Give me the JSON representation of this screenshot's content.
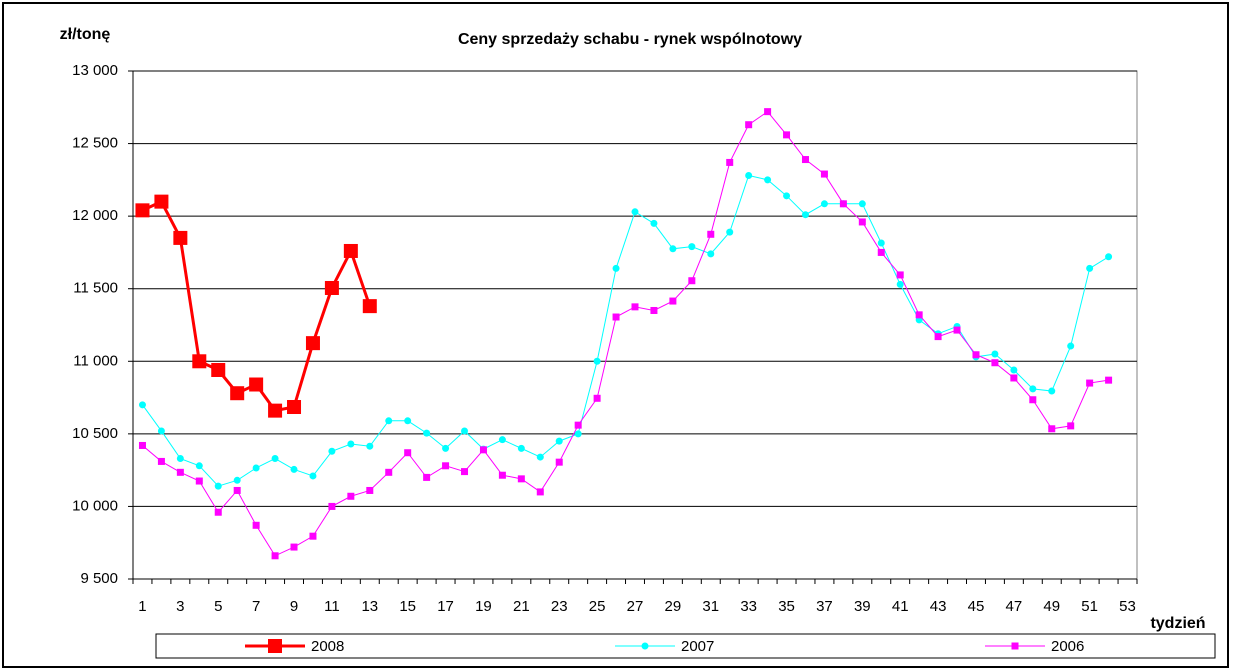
{
  "chart_data": {
    "type": "line",
    "title": "Ceny sprzedaży schabu -  rynek wspólnotowy",
    "y_label": "zł/tonę",
    "x_label": "tydzień",
    "categories": [
      1,
      null,
      3,
      null,
      5,
      null,
      7,
      null,
      9,
      null,
      11,
      null,
      13,
      null,
      15,
      null,
      17,
      null,
      19,
      null,
      21,
      null,
      23,
      null,
      25,
      null,
      27,
      null,
      29,
      null,
      31,
      null,
      33,
      null,
      35,
      null,
      37,
      null,
      39,
      null,
      41,
      null,
      43,
      null,
      45,
      null,
      47,
      null,
      49,
      null,
      51,
      null,
      53
    ],
    "ylim": [
      9500,
      13000
    ],
    "yticks": [
      {
        "value": 9500,
        "label": "9 500"
      },
      {
        "value": 10000,
        "label": "10 000"
      },
      {
        "value": 10500,
        "label": "10 500"
      },
      {
        "value": 11000,
        "label": "11 000"
      },
      {
        "value": 11500,
        "label": "11 500"
      },
      {
        "value": 12000,
        "label": "12 000"
      },
      {
        "value": 12500,
        "label": "12 500"
      },
      {
        "value": 13000,
        "label": "13 000"
      }
    ],
    "grid": true,
    "legend": "bottom",
    "series": [
      {
        "name": "2008",
        "color": "#ff0000",
        "marker": "square",
        "values": [
          12040,
          12100,
          11850,
          11000,
          10940,
          10780,
          10840,
          10660,
          10685,
          11125,
          11505,
          11760,
          11380,
          null,
          null,
          null,
          null,
          null,
          null,
          null,
          null,
          null,
          null,
          null,
          null,
          null,
          null,
          null,
          null,
          null,
          null,
          null,
          null,
          null,
          null,
          null,
          null,
          null,
          null,
          null,
          null,
          null,
          null,
          null,
          null,
          null,
          null,
          null,
          null,
          null,
          null,
          null,
          null
        ]
      },
      {
        "name": "2007",
        "color": "#00ffff",
        "marker": "circle",
        "values": [
          10700,
          10520,
          10330,
          10280,
          10140,
          10180,
          10265,
          10330,
          10255,
          10210,
          10380,
          10430,
          10415,
          10590,
          10590,
          10505,
          10400,
          10520,
          10395,
          10460,
          10400,
          10340,
          10450,
          10500,
          11000,
          11640,
          12030,
          11950,
          11775,
          11790,
          11740,
          11890,
          12280,
          12250,
          12140,
          12010,
          12085,
          12085,
          12085,
          11815,
          11530,
          11285,
          11190,
          11240,
          11030,
          11050,
          10940,
          10810,
          10795,
          11105,
          11640,
          11720,
          null
        ]
      },
      {
        "name": "2006",
        "color": "#ff00ff",
        "marker": "square",
        "values": [
          10420,
          10310,
          10235,
          10175,
          9960,
          10110,
          9870,
          9660,
          9720,
          9795,
          10000,
          10070,
          10110,
          10235,
          10370,
          10200,
          10280,
          10240,
          10390,
          10215,
          10190,
          10100,
          10305,
          10560,
          10745,
          11305,
          11375,
          11350,
          11415,
          11555,
          11875,
          12370,
          12630,
          12720,
          12560,
          12390,
          12290,
          12085,
          11960,
          11750,
          11595,
          11320,
          11170,
          11215,
          11045,
          10990,
          10885,
          10735,
          10535,
          10555,
          10850,
          10870,
          null
        ]
      }
    ]
  }
}
